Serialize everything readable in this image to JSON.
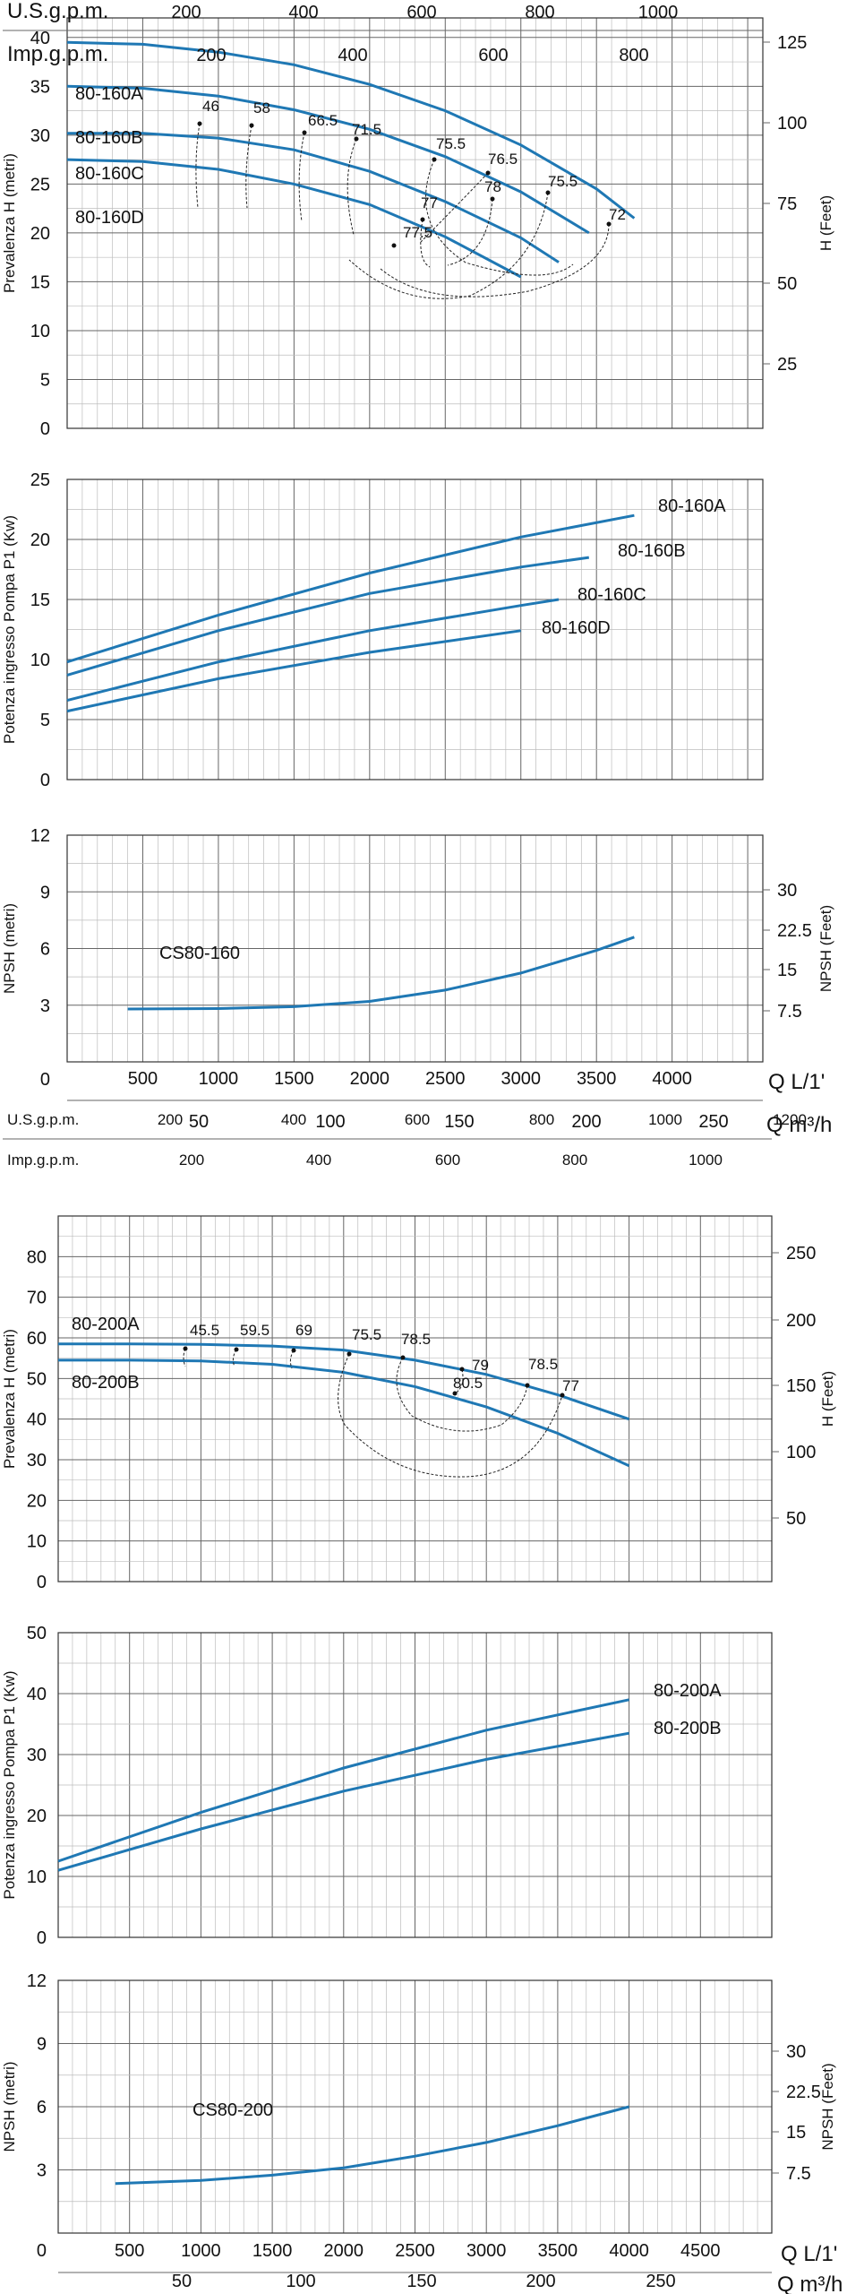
{
  "chart_data": [
    {
      "type": "line",
      "panel": "80-160 head",
      "ylabel": "Prevalenza H (metri)",
      "y2label": "H (Feet)",
      "xlim": [
        0,
        4600
      ],
      "ylim": [
        0,
        42
      ],
      "yticks": [
        0,
        5,
        10,
        15,
        20,
        25,
        30,
        35,
        40
      ],
      "y2ticks": [
        "25",
        "50",
        "75",
        "100",
        "125"
      ],
      "top_axes": [
        {
          "label": "U.S.g.p.m.",
          "ticks": [
            "200",
            "400",
            "600",
            "800",
            "1000"
          ]
        },
        {
          "label": "Imp.g.p.m.",
          "ticks": [
            "200",
            "400",
            "600",
            "800"
          ]
        }
      ],
      "series": [
        {
          "name": "80-160A",
          "x": [
            0,
            500,
            1000,
            1500,
            2000,
            2500,
            3000,
            3500,
            3750
          ],
          "y": [
            39.5,
            39.3,
            38.5,
            37.2,
            35.2,
            32.5,
            29,
            24.5,
            21.5
          ]
        },
        {
          "name": "80-160B",
          "x": [
            0,
            500,
            1000,
            1500,
            2000,
            2500,
            3000,
            3450
          ],
          "y": [
            35,
            34.8,
            34,
            32.6,
            30.6,
            27.8,
            24.2,
            20
          ]
        },
        {
          "name": "80-160C",
          "x": [
            0,
            500,
            1000,
            1500,
            2000,
            2500,
            3000,
            3250
          ],
          "y": [
            30.2,
            30.2,
            29.7,
            28.5,
            26.3,
            23.2,
            19.5,
            17
          ]
        },
        {
          "name": "80-160D",
          "x": [
            0,
            500,
            1000,
            1500,
            2000,
            2500,
            3000
          ],
          "y": [
            27.5,
            27.3,
            26.5,
            25,
            22.9,
            19.6,
            15.5
          ]
        }
      ],
      "efficiency_labels": [
        "46",
        "58",
        "66.5",
        "71.5",
        "75.5",
        "76.5",
        "75.5",
        "72",
        "78",
        "77",
        "77.5"
      ]
    },
    {
      "type": "line",
      "panel": "80-160 power",
      "ylabel": "Potenza ingresso Pompa P1 (Kw)",
      "xlim": [
        0,
        4600
      ],
      "ylim": [
        0,
        25
      ],
      "yticks": [
        0,
        5,
        10,
        15,
        20,
        25
      ],
      "series": [
        {
          "name": "80-160A",
          "x": [
            0,
            1000,
            2000,
            3000,
            3750
          ],
          "y": [
            9.8,
            13.7,
            17.2,
            20.2,
            22
          ]
        },
        {
          "name": "80-160B",
          "x": [
            0,
            1000,
            2000,
            3000,
            3450
          ],
          "y": [
            8.7,
            12.4,
            15.5,
            17.7,
            18.5
          ]
        },
        {
          "name": "80-160C",
          "x": [
            0,
            1000,
            2000,
            3000,
            3250
          ],
          "y": [
            6.6,
            9.8,
            12.4,
            14.5,
            15
          ]
        },
        {
          "name": "80-160D",
          "x": [
            0,
            1000,
            2000,
            3000
          ],
          "y": [
            5.7,
            8.4,
            10.6,
            12.4
          ]
        }
      ]
    },
    {
      "type": "line",
      "panel": "80-160 npsh",
      "ylabel": "NPSH (metri)",
      "y2label": "NPSH (Feet)",
      "xlabel": "Q L/1'",
      "x2label": "Q m³/h",
      "xlim": [
        0,
        4600
      ],
      "ylim": [
        0,
        12
      ],
      "yticks": [
        3,
        6,
        9,
        12
      ],
      "y0": "0",
      "y2ticks": [
        "7.5",
        "15",
        "22.5",
        "30"
      ],
      "xticks": [
        500,
        1000,
        1500,
        2000,
        2500,
        3000,
        3500,
        4000
      ],
      "x2ticks": [
        "50",
        "100",
        "150",
        "200",
        "250"
      ],
      "series": [
        {
          "name": "CS80-160",
          "x": [
            400,
            1000,
            1500,
            2000,
            2500,
            3000,
            3500,
            3750
          ],
          "y": [
            2.8,
            2.82,
            2.92,
            3.2,
            3.8,
            4.7,
            5.9,
            6.6
          ]
        }
      ]
    },
    {
      "type": "line",
      "panel": "80-200 head",
      "ylabel": "Prevalenza H (metri)",
      "y2label": "H (Feet)",
      "xlim": [
        0,
        5000
      ],
      "ylim": [
        0,
        90
      ],
      "yticks": [
        0,
        10,
        20,
        30,
        40,
        50,
        60,
        70,
        80
      ],
      "y2ticks": [
        "50",
        "100",
        "150",
        "200",
        "250"
      ],
      "top_axes": [
        {
          "label": "U.S.g.p.m.",
          "ticks": [
            "200",
            "400",
            "600",
            "800",
            "1000",
            "1200"
          ]
        },
        {
          "label": "Imp.g.p.m.",
          "ticks": [
            "200",
            "400",
            "600",
            "800",
            "1000"
          ]
        }
      ],
      "series": [
        {
          "name": "80-200A",
          "x": [
            0,
            500,
            1000,
            1500,
            2000,
            2500,
            3000,
            3500,
            4000
          ],
          "y": [
            58.5,
            58.5,
            58.4,
            58,
            57,
            54.5,
            51,
            46,
            40
          ]
        },
        {
          "name": "80-200B",
          "x": [
            0,
            500,
            1000,
            1500,
            2000,
            2500,
            3000,
            3500,
            4000
          ],
          "y": [
            54.5,
            54.5,
            54.3,
            53.5,
            51.5,
            48,
            43,
            36.5,
            28.5
          ]
        }
      ],
      "efficiency_labels": [
        "45.5",
        "59.5",
        "69",
        "75.5",
        "78.5",
        "79",
        "78.5",
        "77",
        "80.5"
      ]
    },
    {
      "type": "line",
      "panel": "80-200 power",
      "ylabel": "Potenza ingresso Pompa P1 (Kw)",
      "xlim": [
        0,
        5000
      ],
      "ylim": [
        0,
        50
      ],
      "yticks": [
        0,
        10,
        20,
        30,
        40,
        50
      ],
      "series": [
        {
          "name": "80-200A",
          "x": [
            0,
            1000,
            2000,
            3000,
            4000
          ],
          "y": [
            12.5,
            20.5,
            27.8,
            34,
            39
          ]
        },
        {
          "name": "80-200B",
          "x": [
            0,
            1000,
            2000,
            3000,
            4000
          ],
          "y": [
            11,
            17.8,
            24,
            29.2,
            33.5
          ]
        }
      ]
    },
    {
      "type": "line",
      "panel": "80-200 npsh",
      "ylabel": "NPSH (metri)",
      "y2label": "NPSH (Feet)",
      "xlabel": "Q L/1'",
      "x2label": "Q m³/h",
      "xlim": [
        0,
        5000
      ],
      "ylim": [
        0,
        12
      ],
      "yticks": [
        3,
        6,
        9,
        12
      ],
      "y0": "0",
      "y2ticks": [
        "7.5",
        "15",
        "22.5",
        "30"
      ],
      "xticks": [
        500,
        1000,
        1500,
        2000,
        2500,
        3000,
        3500,
        4000,
        4500
      ],
      "x2ticks": [
        "50",
        "100",
        "150",
        "200",
        "250"
      ],
      "series": [
        {
          "name": "CS80-200",
          "x": [
            400,
            1000,
            1500,
            2000,
            2500,
            3000,
            3500,
            4000
          ],
          "y": [
            2.35,
            2.5,
            2.75,
            3.1,
            3.65,
            4.3,
            5.1,
            6
          ]
        }
      ]
    }
  ]
}
